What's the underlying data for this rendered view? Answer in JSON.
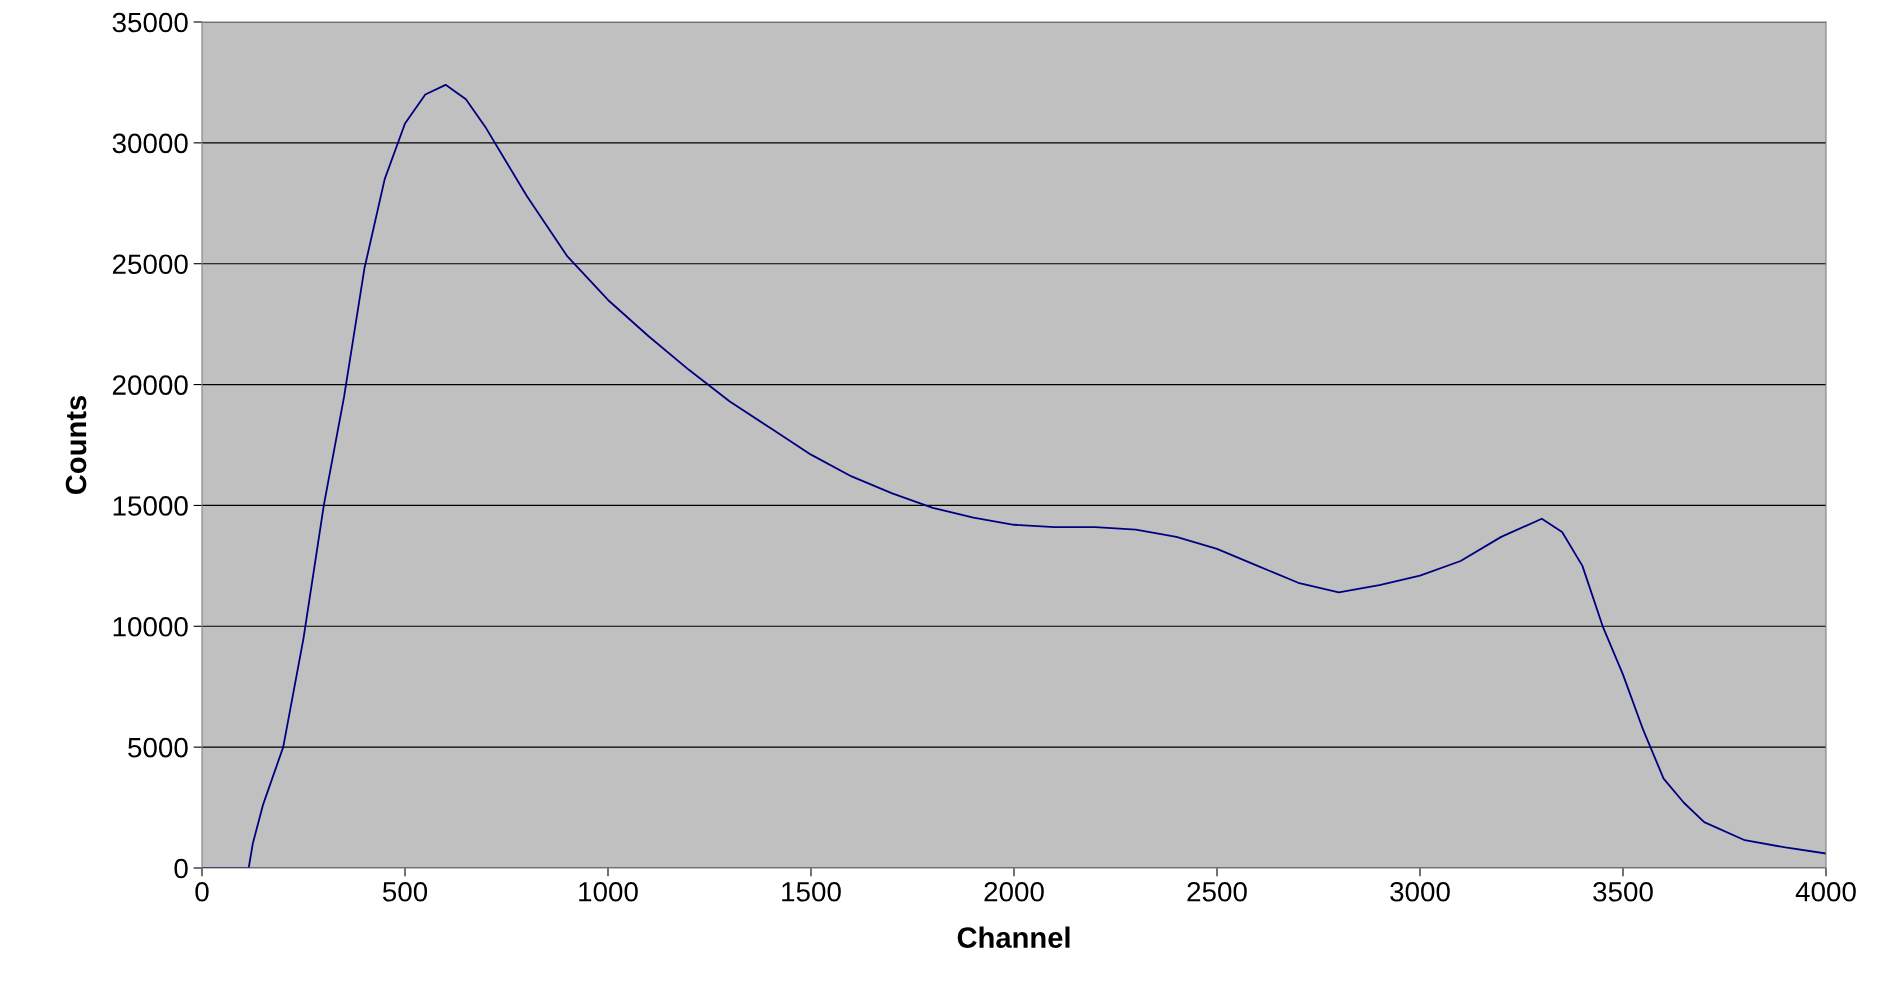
{
  "chart_data": {
    "type": "line",
    "xlabel": "Channel",
    "ylabel": "Counts",
    "xlim": [
      0,
      4000
    ],
    "ylim": [
      0,
      35000
    ],
    "xticks": [
      0,
      500,
      1000,
      1500,
      2000,
      2500,
      3000,
      3500,
      4000
    ],
    "yticks": [
      0,
      5000,
      10000,
      15000,
      20000,
      25000,
      30000,
      35000
    ],
    "grid": "y",
    "marker": "none",
    "line_style": "solid",
    "series": [
      {
        "color": "#000080",
        "x": [
          0,
          100,
          115,
          125,
          150,
          200,
          250,
          300,
          350,
          400,
          450,
          500,
          550,
          600,
          650,
          700,
          750,
          800,
          900,
          1000,
          1100,
          1200,
          1300,
          1400,
          1500,
          1600,
          1700,
          1800,
          1900,
          2000,
          2100,
          2200,
          2300,
          2400,
          2500,
          2600,
          2700,
          2800,
          2900,
          3000,
          3100,
          3200,
          3300,
          3350,
          3400,
          3450,
          3500,
          3550,
          3600,
          3650,
          3700,
          3800,
          3900,
          4000
        ],
        "values": [
          0,
          0,
          0,
          1000,
          2600,
          5000,
          9500,
          15000,
          19500,
          24800,
          28500,
          30800,
          32000,
          32400,
          31800,
          30600,
          29200,
          27800,
          25300,
          23500,
          22000,
          20600,
          19300,
          18200,
          17100,
          16200,
          15500,
          14900,
          14500,
          14200,
          14100,
          14100,
          14000,
          13700,
          13200,
          12500,
          11800,
          11400,
          11700,
          12100,
          12700,
          13700,
          14450,
          13900,
          12500,
          10000,
          8000,
          5700,
          3700,
          2700,
          1900,
          1150,
          850,
          600
        ]
      }
    ]
  }
}
